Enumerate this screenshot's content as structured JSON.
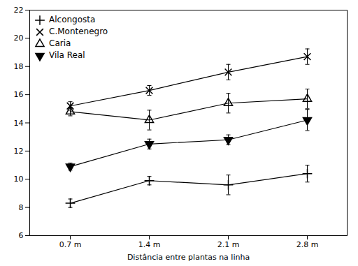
{
  "chart_data": {
    "type": "line",
    "xlabel": "Distância entre plantas na linha",
    "categories": [
      "0.7 m",
      "1.4 m",
      "2.1 m",
      "2.8 m"
    ],
    "series": [
      {
        "name": "Alcongosta",
        "color": "#000000",
        "marker": "plus",
        "values": [
          8.3,
          9.9,
          9.6,
          10.4
        ],
        "yerr": [
          0.3,
          0.3,
          0.7,
          0.6
        ]
      },
      {
        "name": "C.Montenegro",
        "color": "#000000",
        "marker": "times",
        "values": [
          15.2,
          16.3,
          17.6,
          18.7
        ],
        "yerr": [
          0.3,
          0.35,
          0.55,
          0.55
        ]
      },
      {
        "name": "Caria",
        "color": "#000000",
        "marker": "triangle-up-open",
        "values": [
          14.8,
          14.2,
          15.4,
          15.7
        ],
        "yerr": [
          0.3,
          0.7,
          0.7,
          0.7
        ]
      },
      {
        "name": "Vila Real",
        "color": "#000000",
        "marker": "triangle-down-filled",
        "values": [
          10.9,
          12.5,
          12.8,
          14.2
        ],
        "yerr": [
          0.25,
          0.35,
          0.35,
          0.75
        ]
      }
    ],
    "ylim": [
      6,
      22
    ],
    "yticks": [
      6,
      8,
      10,
      12,
      14,
      16,
      18,
      20,
      22
    ],
    "grid": false,
    "legend": "upper left"
  }
}
